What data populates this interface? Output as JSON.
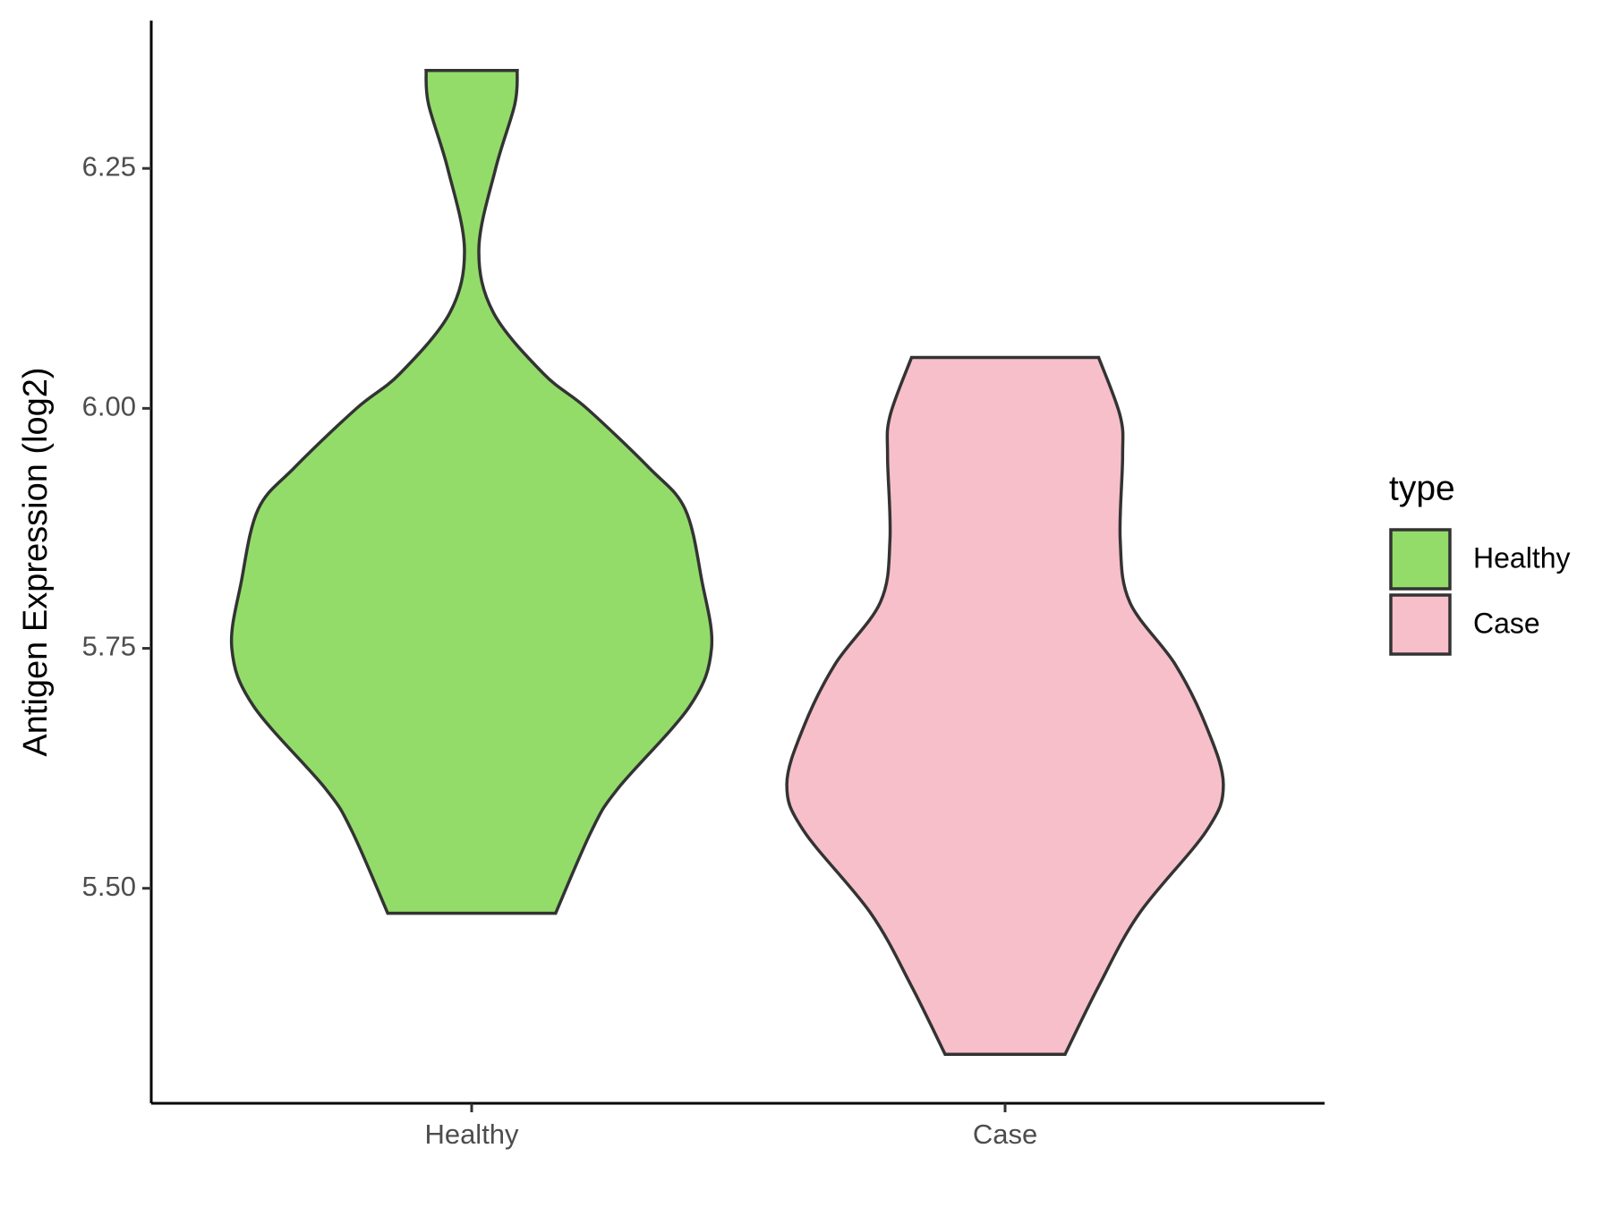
{
  "chart_data": {
    "type": "violin",
    "y_label": "Antigen Expression (log2)",
    "categories": [
      "Healthy",
      "Case"
    ],
    "series": [
      {
        "name": "Healthy",
        "color": "#93dc6a",
        "y": [
          6.352,
          6.317,
          6.25,
          6.166,
          6.1,
          6.036,
          6.0,
          5.938,
          5.895,
          5.82,
          5.75,
          5.69,
          5.604,
          5.56,
          5.474
        ],
        "width": [
          0.19,
          0.18,
          0.1,
          0.03,
          0.09,
          0.3,
          0.48,
          0.74,
          0.89,
          0.96,
          1.0,
          0.91,
          0.61,
          0.5,
          0.35
        ]
      },
      {
        "name": "Case",
        "color": "#f7bfca",
        "y": [
          6.053,
          5.992,
          5.95,
          5.863,
          5.798,
          5.733,
          5.668,
          5.608,
          5.56,
          5.474,
          5.398,
          5.327
        ],
        "width": [
          0.39,
          0.48,
          0.49,
          0.48,
          0.52,
          0.71,
          0.84,
          0.91,
          0.84,
          0.56,
          0.39,
          0.25
        ]
      }
    ],
    "ylim": [
      5.276,
      6.404
    ],
    "yticks": [
      {
        "value": 5.5,
        "label": "5.50"
      },
      {
        "value": 5.75,
        "label": "5.75"
      },
      {
        "value": 6.0,
        "label": "6.00"
      },
      {
        "value": 6.25,
        "label": "6.25"
      }
    ],
    "legend_title": "type",
    "legend_position": "right"
  }
}
